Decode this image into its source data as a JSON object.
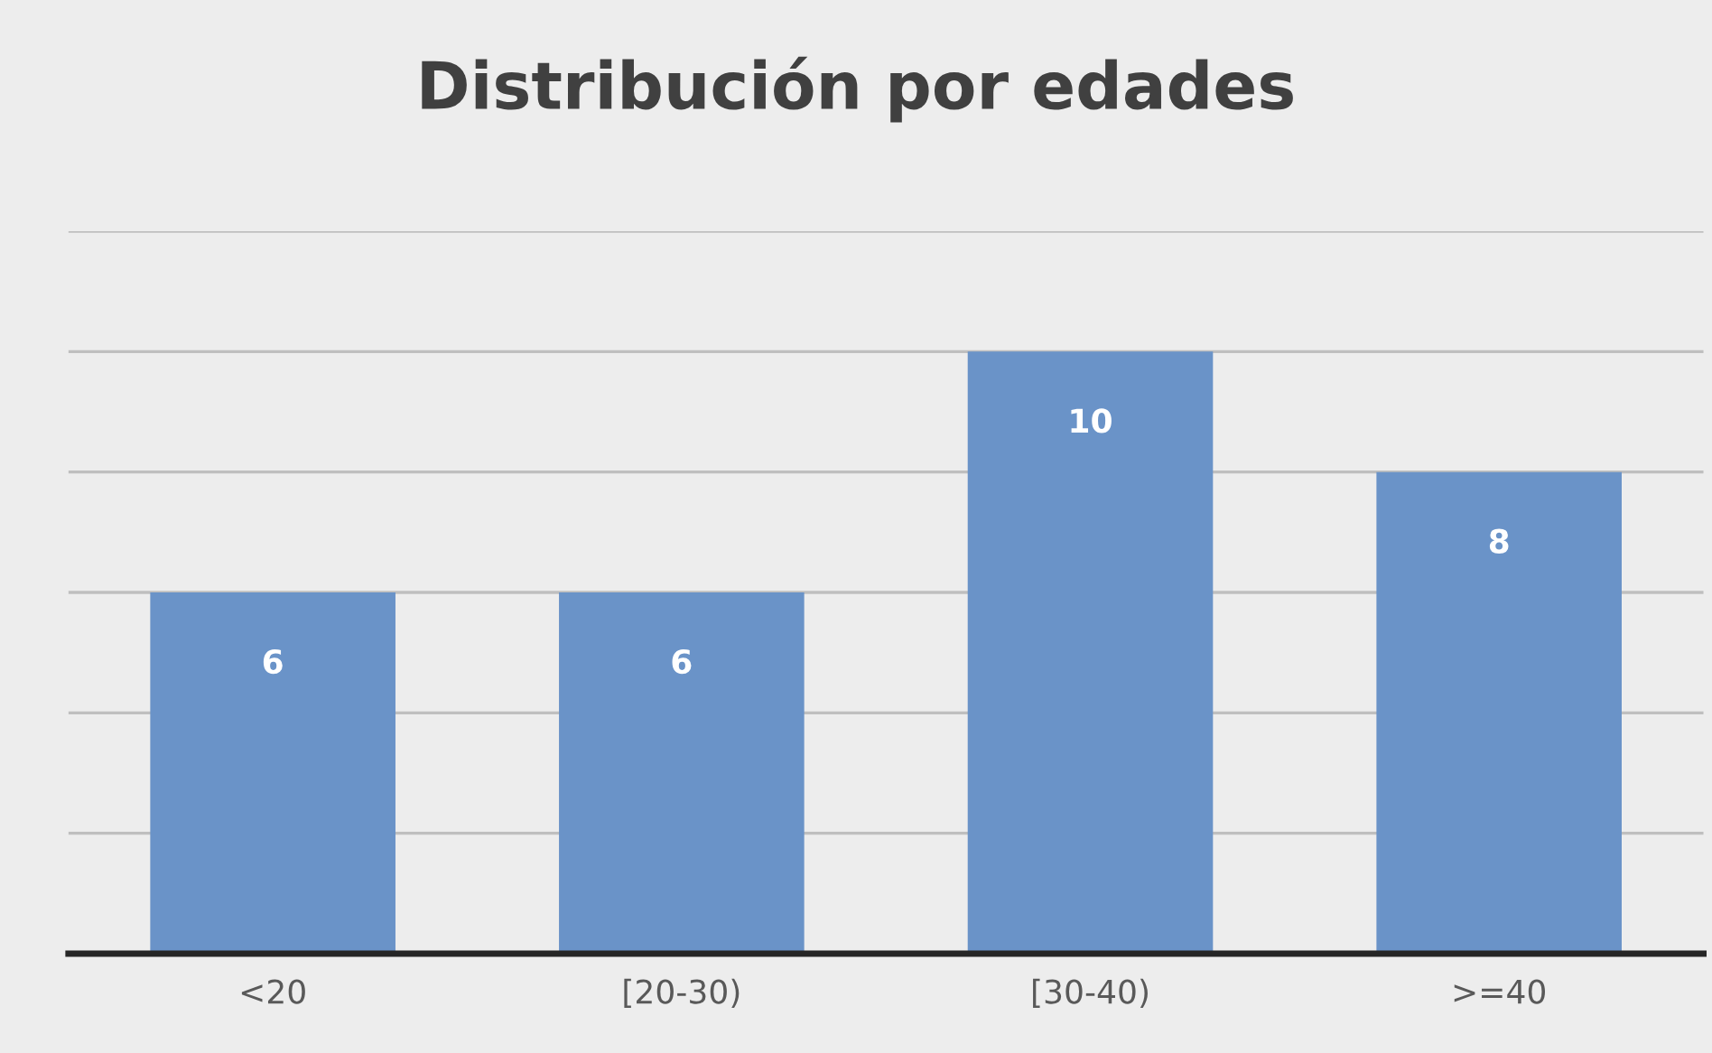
{
  "chart_data": {
    "type": "bar",
    "title": "Distribución por edades",
    "categories": [
      "<20",
      "[20-30)",
      "[30-40)",
      ">=40"
    ],
    "values": [
      6,
      6,
      10,
      8
    ],
    "color": "#6a93c8",
    "ylim": [
      0,
      12
    ],
    "yticks": [
      {
        "value": 0,
        "label": null
      },
      {
        "value": 2,
        "label": null
      },
      {
        "value": 4,
        "label": null
      },
      {
        "value": 6,
        "label": null
      },
      {
        "value": 8,
        "label": null
      },
      {
        "value": 10,
        "label": null
      },
      {
        "value": 12,
        "label": null
      }
    ],
    "grid": "y",
    "data_labels": true,
    "legend": false
  }
}
